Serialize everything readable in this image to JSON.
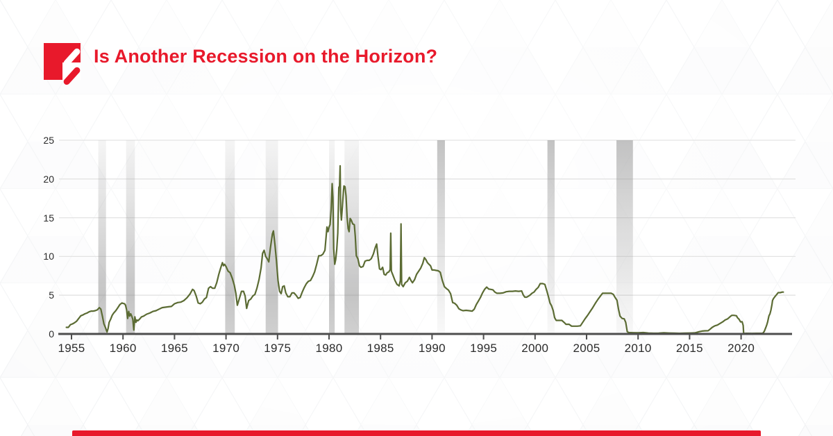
{
  "header": {
    "title": "Is Another Recession on the Horizon?",
    "brand_color": "#e8192b"
  },
  "chart_data": {
    "type": "line",
    "title": "",
    "xlabel": "",
    "ylabel": "",
    "grid": true,
    "legend": false,
    "ylim": [
      0,
      25
    ],
    "xlim": [
      1953.8,
      2024.3
    ],
    "y_tick_labels": [
      "0",
      "5",
      "10",
      "15",
      "20",
      "25"
    ],
    "y_ticks": [
      0,
      5,
      10,
      15,
      20,
      25
    ],
    "x_tick_labels": [
      "1955",
      "1960",
      "1965",
      "1970",
      "1975",
      "1980",
      "1985",
      "1990",
      "1995",
      "2000",
      "2005",
      "2010",
      "2015",
      "2020"
    ],
    "x_ticks": [
      1955,
      1960,
      1965,
      1970,
      1975,
      1980,
      1985,
      1990,
      1995,
      2000,
      2005,
      2010,
      2015,
      2020
    ],
    "line_color": "#5b6b33",
    "axis_color": "#4d4d4d",
    "grid_color": "#e3e3e3",
    "recession_band_color": "#9a9a9a",
    "recessions": [
      [
        1957.6,
        1958.35
      ],
      [
        1960.3,
        1961.15
      ],
      [
        1969.92,
        1970.85
      ],
      [
        1973.85,
        1975.05
      ],
      [
        1980.0,
        1980.55
      ],
      [
        1981.5,
        1982.9
      ],
      [
        1990.5,
        1991.25
      ],
      [
        2001.2,
        2001.9
      ],
      [
        2007.9,
        2009.5
      ]
    ],
    "points": [
      [
        1954.5,
        0.85
      ],
      [
        1954.7,
        0.85
      ],
      [
        1954.9,
        1.2
      ],
      [
        1955.1,
        1.3
      ],
      [
        1955.3,
        1.45
      ],
      [
        1955.5,
        1.65
      ],
      [
        1955.7,
        2.0
      ],
      [
        1955.9,
        2.35
      ],
      [
        1956.1,
        2.45
      ],
      [
        1956.3,
        2.6
      ],
      [
        1956.5,
        2.7
      ],
      [
        1956.7,
        2.85
      ],
      [
        1956.9,
        2.95
      ],
      [
        1957.1,
        2.95
      ],
      [
        1957.3,
        3.0
      ],
      [
        1957.5,
        3.1
      ],
      [
        1957.7,
        3.4
      ],
      [
        1957.85,
        3.2
      ],
      [
        1958.0,
        2.3
      ],
      [
        1958.15,
        1.3
      ],
      [
        1958.3,
        0.8
      ],
      [
        1958.45,
        0.25
      ],
      [
        1958.55,
        0.7
      ],
      [
        1958.65,
        1.5
      ],
      [
        1958.8,
        1.9
      ],
      [
        1958.95,
        2.4
      ],
      [
        1959.1,
        2.7
      ],
      [
        1959.3,
        3.0
      ],
      [
        1959.5,
        3.4
      ],
      [
        1959.7,
        3.8
      ],
      [
        1959.9,
        4.0
      ],
      [
        1960.0,
        3.95
      ],
      [
        1960.15,
        3.9
      ],
      [
        1960.25,
        3.7
      ],
      [
        1960.35,
        3.1
      ],
      [
        1960.45,
        2.0
      ],
      [
        1960.55,
        2.9
      ],
      [
        1960.65,
        2.3
      ],
      [
        1960.75,
        2.6
      ],
      [
        1960.85,
        2.3
      ],
      [
        1960.95,
        1.9
      ],
      [
        1961.05,
        0.5
      ],
      [
        1961.15,
        2.2
      ],
      [
        1961.25,
        1.5
      ],
      [
        1961.35,
        1.8
      ],
      [
        1961.45,
        1.7
      ],
      [
        1961.6,
        1.9
      ],
      [
        1961.8,
        2.2
      ],
      [
        1962.0,
        2.3
      ],
      [
        1962.3,
        2.55
      ],
      [
        1962.6,
        2.7
      ],
      [
        1962.9,
        2.9
      ],
      [
        1963.2,
        3.0
      ],
      [
        1963.5,
        3.2
      ],
      [
        1963.8,
        3.4
      ],
      [
        1964.1,
        3.45
      ],
      [
        1964.4,
        3.5
      ],
      [
        1964.7,
        3.55
      ],
      [
        1965.0,
        3.9
      ],
      [
        1965.3,
        4.05
      ],
      [
        1965.6,
        4.1
      ],
      [
        1965.9,
        4.3
      ],
      [
        1966.2,
        4.65
      ],
      [
        1966.5,
        5.15
      ],
      [
        1966.75,
        5.75
      ],
      [
        1966.9,
        5.6
      ],
      [
        1967.1,
        4.9
      ],
      [
        1967.3,
        4.0
      ],
      [
        1967.5,
        3.9
      ],
      [
        1967.7,
        4.1
      ],
      [
        1967.9,
        4.5
      ],
      [
        1968.1,
        4.7
      ],
      [
        1968.3,
        5.9
      ],
      [
        1968.5,
        6.1
      ],
      [
        1968.7,
        5.9
      ],
      [
        1968.9,
        5.9
      ],
      [
        1969.1,
        6.6
      ],
      [
        1969.3,
        7.7
      ],
      [
        1969.5,
        8.6
      ],
      [
        1969.65,
        9.2
      ],
      [
        1969.75,
        8.8
      ],
      [
        1969.85,
        9.0
      ],
      [
        1970.0,
        8.7
      ],
      [
        1970.2,
        8.1
      ],
      [
        1970.4,
        7.9
      ],
      [
        1970.6,
        7.2
      ],
      [
        1970.8,
        6.3
      ],
      [
        1970.95,
        5.3
      ],
      [
        1971.1,
        3.7
      ],
      [
        1971.3,
        4.6
      ],
      [
        1971.5,
        5.5
      ],
      [
        1971.7,
        5.5
      ],
      [
        1971.85,
        4.9
      ],
      [
        1972.0,
        3.3
      ],
      [
        1972.2,
        4.3
      ],
      [
        1972.4,
        4.5
      ],
      [
        1972.6,
        4.9
      ],
      [
        1972.8,
        5.1
      ],
      [
        1973.0,
        5.9
      ],
      [
        1973.2,
        7.0
      ],
      [
        1973.4,
        8.5
      ],
      [
        1973.55,
        10.4
      ],
      [
        1973.7,
        10.8
      ],
      [
        1973.85,
        10.0
      ],
      [
        1974.0,
        9.7
      ],
      [
        1974.15,
        9.3
      ],
      [
        1974.3,
        11.0
      ],
      [
        1974.5,
        12.9
      ],
      [
        1974.6,
        13.3
      ],
      [
        1974.75,
        11.5
      ],
      [
        1974.9,
        9.4
      ],
      [
        1975.05,
        6.9
      ],
      [
        1975.2,
        5.5
      ],
      [
        1975.35,
        5.2
      ],
      [
        1975.5,
        6.1
      ],
      [
        1975.65,
        6.2
      ],
      [
        1975.8,
        5.3
      ],
      [
        1976.0,
        4.8
      ],
      [
        1976.2,
        4.8
      ],
      [
        1976.4,
        5.3
      ],
      [
        1976.6,
        5.3
      ],
      [
        1976.8,
        5.0
      ],
      [
        1977.0,
        4.6
      ],
      [
        1977.2,
        4.7
      ],
      [
        1977.4,
        5.4
      ],
      [
        1977.6,
        6.0
      ],
      [
        1977.8,
        6.5
      ],
      [
        1978.0,
        6.8
      ],
      [
        1978.2,
        6.9
      ],
      [
        1978.4,
        7.4
      ],
      [
        1978.6,
        8.0
      ],
      [
        1978.8,
        9.0
      ],
      [
        1979.0,
        10.1
      ],
      [
        1979.2,
        10.1
      ],
      [
        1979.4,
        10.3
      ],
      [
        1979.6,
        10.8
      ],
      [
        1979.8,
        13.8
      ],
      [
        1979.9,
        13.2
      ],
      [
        1980.0,
        13.8
      ],
      [
        1980.1,
        14.1
      ],
      [
        1980.2,
        16.0
      ],
      [
        1980.3,
        19.4
      ],
      [
        1980.38,
        17.6
      ],
      [
        1980.45,
        11.0
      ],
      [
        1980.55,
        9.0
      ],
      [
        1980.65,
        9.6
      ],
      [
        1980.75,
        10.9
      ],
      [
        1980.85,
        13.0
      ],
      [
        1980.95,
        18.9
      ],
      [
        1981.02,
        19.1
      ],
      [
        1981.08,
        21.7
      ],
      [
        1981.13,
        16.0
      ],
      [
        1981.2,
        14.7
      ],
      [
        1981.3,
        16.5
      ],
      [
        1981.4,
        18.5
      ],
      [
        1981.45,
        19.1
      ],
      [
        1981.55,
        19.0
      ],
      [
        1981.65,
        17.8
      ],
      [
        1981.75,
        15.1
      ],
      [
        1981.85,
        13.6
      ],
      [
        1981.95,
        13.2
      ],
      [
        1982.05,
        14.9
      ],
      [
        1982.15,
        14.7
      ],
      [
        1982.3,
        14.2
      ],
      [
        1982.45,
        14.1
      ],
      [
        1982.55,
        12.6
      ],
      [
        1982.65,
        10.1
      ],
      [
        1982.8,
        9.7
      ],
      [
        1982.95,
        8.8
      ],
      [
        1983.1,
        8.6
      ],
      [
        1983.3,
        8.7
      ],
      [
        1983.5,
        9.4
      ],
      [
        1983.7,
        9.5
      ],
      [
        1983.9,
        9.5
      ],
      [
        1984.1,
        9.7
      ],
      [
        1984.3,
        10.3
      ],
      [
        1984.5,
        11.2
      ],
      [
        1984.62,
        11.6
      ],
      [
        1984.75,
        10.0
      ],
      [
        1984.9,
        8.4
      ],
      [
        1985.05,
        8.3
      ],
      [
        1985.2,
        8.6
      ],
      [
        1985.35,
        7.7
      ],
      [
        1985.5,
        7.6
      ],
      [
        1985.65,
        7.9
      ],
      [
        1985.8,
        8.0
      ],
      [
        1985.93,
        8.3
      ],
      [
        1985.99,
        13.0
      ],
      [
        1986.05,
        8.1
      ],
      [
        1986.2,
        7.6
      ],
      [
        1986.4,
        6.9
      ],
      [
        1986.6,
        6.4
      ],
      [
        1986.8,
        6.2
      ],
      [
        1986.93,
        6.9
      ],
      [
        1986.99,
        14.2
      ],
      [
        1987.05,
        6.4
      ],
      [
        1987.2,
        6.1
      ],
      [
        1987.4,
        6.6
      ],
      [
        1987.6,
        6.8
      ],
      [
        1987.8,
        7.3
      ],
      [
        1987.95,
        6.9
      ],
      [
        1988.1,
        6.6
      ],
      [
        1988.3,
        7.0
      ],
      [
        1988.5,
        7.7
      ],
      [
        1988.7,
        8.1
      ],
      [
        1988.9,
        8.5
      ],
      [
        1989.1,
        9.1
      ],
      [
        1989.25,
        9.85
      ],
      [
        1989.4,
        9.6
      ],
      [
        1989.55,
        9.2
      ],
      [
        1989.7,
        9.0
      ],
      [
        1989.85,
        8.8
      ],
      [
        1990.0,
        8.25
      ],
      [
        1990.2,
        8.25
      ],
      [
        1990.4,
        8.2
      ],
      [
        1990.6,
        8.15
      ],
      [
        1990.8,
        7.95
      ],
      [
        1991.0,
        6.9
      ],
      [
        1991.2,
        6.1
      ],
      [
        1991.4,
        5.85
      ],
      [
        1991.6,
        5.65
      ],
      [
        1991.8,
        5.2
      ],
      [
        1992.0,
        4.05
      ],
      [
        1992.2,
        3.95
      ],
      [
        1992.4,
        3.7
      ],
      [
        1992.6,
        3.25
      ],
      [
        1992.8,
        3.1
      ],
      [
        1993.0,
        3.0
      ],
      [
        1993.3,
        3.05
      ],
      [
        1993.6,
        3.0
      ],
      [
        1993.9,
        2.95
      ],
      [
        1994.1,
        3.2
      ],
      [
        1994.3,
        3.8
      ],
      [
        1994.5,
        4.25
      ],
      [
        1994.7,
        4.7
      ],
      [
        1994.9,
        5.3
      ],
      [
        1995.1,
        5.75
      ],
      [
        1995.3,
        6.05
      ],
      [
        1995.5,
        5.8
      ],
      [
        1995.7,
        5.75
      ],
      [
        1995.9,
        5.7
      ],
      [
        1996.1,
        5.4
      ],
      [
        1996.3,
        5.25
      ],
      [
        1996.6,
        5.25
      ],
      [
        1996.9,
        5.3
      ],
      [
        1997.2,
        5.45
      ],
      [
        1997.5,
        5.5
      ],
      [
        1997.8,
        5.5
      ],
      [
        1998.1,
        5.55
      ],
      [
        1998.4,
        5.5
      ],
      [
        1998.7,
        5.55
      ],
      [
        1998.85,
        5.05
      ],
      [
        1999.0,
        4.75
      ],
      [
        1999.2,
        4.75
      ],
      [
        1999.5,
        5.0
      ],
      [
        1999.7,
        5.25
      ],
      [
        1999.9,
        5.4
      ],
      [
        2000.1,
        5.75
      ],
      [
        2000.3,
        6.0
      ],
      [
        2000.5,
        6.5
      ],
      [
        2000.75,
        6.5
      ],
      [
        2000.95,
        6.4
      ],
      [
        2001.05,
        5.95
      ],
      [
        2001.15,
        5.5
      ],
      [
        2001.3,
        4.8
      ],
      [
        2001.45,
        4.0
      ],
      [
        2001.6,
        3.65
      ],
      [
        2001.75,
        3.05
      ],
      [
        2001.9,
        2.1
      ],
      [
        2002.05,
        1.75
      ],
      [
        2002.3,
        1.75
      ],
      [
        2002.6,
        1.75
      ],
      [
        2002.85,
        1.45
      ],
      [
        2003.0,
        1.25
      ],
      [
        2003.3,
        1.25
      ],
      [
        2003.55,
        1.0
      ],
      [
        2003.8,
        1.0
      ],
      [
        2004.1,
        1.0
      ],
      [
        2004.4,
        1.05
      ],
      [
        2004.6,
        1.45
      ],
      [
        2004.85,
        1.95
      ],
      [
        2005.1,
        2.4
      ],
      [
        2005.35,
        2.9
      ],
      [
        2005.6,
        3.4
      ],
      [
        2005.85,
        3.95
      ],
      [
        2006.1,
        4.45
      ],
      [
        2006.35,
        4.9
      ],
      [
        2006.55,
        5.25
      ],
      [
        2006.8,
        5.25
      ],
      [
        2007.1,
        5.25
      ],
      [
        2007.4,
        5.25
      ],
      [
        2007.6,
        5.1
      ],
      [
        2007.75,
        4.75
      ],
      [
        2007.95,
        4.35
      ],
      [
        2008.1,
        3.2
      ],
      [
        2008.25,
        2.3
      ],
      [
        2008.45,
        2.0
      ],
      [
        2008.65,
        1.95
      ],
      [
        2008.8,
        1.5
      ],
      [
        2008.95,
        0.3
      ],
      [
        2009.1,
        0.18
      ],
      [
        2009.5,
        0.16
      ],
      [
        2010.0,
        0.14
      ],
      [
        2010.5,
        0.18
      ],
      [
        2011.0,
        0.12
      ],
      [
        2011.5,
        0.09
      ],
      [
        2012.0,
        0.1
      ],
      [
        2012.5,
        0.14
      ],
      [
        2013.0,
        0.12
      ],
      [
        2013.5,
        0.1
      ],
      [
        2014.0,
        0.08
      ],
      [
        2014.5,
        0.1
      ],
      [
        2015.0,
        0.12
      ],
      [
        2015.5,
        0.13
      ],
      [
        2015.95,
        0.3
      ],
      [
        2016.2,
        0.37
      ],
      [
        2016.5,
        0.4
      ],
      [
        2016.8,
        0.41
      ],
      [
        2016.98,
        0.6
      ],
      [
        2017.2,
        0.85
      ],
      [
        2017.45,
        1.05
      ],
      [
        2017.7,
        1.15
      ],
      [
        2017.95,
        1.35
      ],
      [
        2018.2,
        1.55
      ],
      [
        2018.45,
        1.8
      ],
      [
        2018.7,
        1.95
      ],
      [
        2018.95,
        2.25
      ],
      [
        2019.1,
        2.4
      ],
      [
        2019.3,
        2.4
      ],
      [
        2019.55,
        2.35
      ],
      [
        2019.65,
        2.1
      ],
      [
        2019.8,
        1.9
      ],
      [
        2019.95,
        1.55
      ],
      [
        2020.1,
        1.58
      ],
      [
        2020.2,
        1.1
      ],
      [
        2020.25,
        0.06
      ],
      [
        2020.5,
        0.08
      ],
      [
        2021.0,
        0.07
      ],
      [
        2021.5,
        0.08
      ],
      [
        2021.9,
        0.08
      ],
      [
        2022.1,
        0.08
      ],
      [
        2022.25,
        0.33
      ],
      [
        2022.4,
        0.83
      ],
      [
        2022.5,
        1.2
      ],
      [
        2022.58,
        1.58
      ],
      [
        2022.7,
        2.33
      ],
      [
        2022.8,
        2.6
      ],
      [
        2022.9,
        3.08
      ],
      [
        2023.0,
        3.8
      ],
      [
        2023.05,
        4.33
      ],
      [
        2023.15,
        4.57
      ],
      [
        2023.3,
        4.85
      ],
      [
        2023.45,
        5.08
      ],
      [
        2023.6,
        5.33
      ],
      [
        2023.8,
        5.33
      ],
      [
        2024.0,
        5.4
      ],
      [
        2024.1,
        5.4
      ]
    ]
  },
  "footer": {
    "accent_color": "#e8192b"
  }
}
